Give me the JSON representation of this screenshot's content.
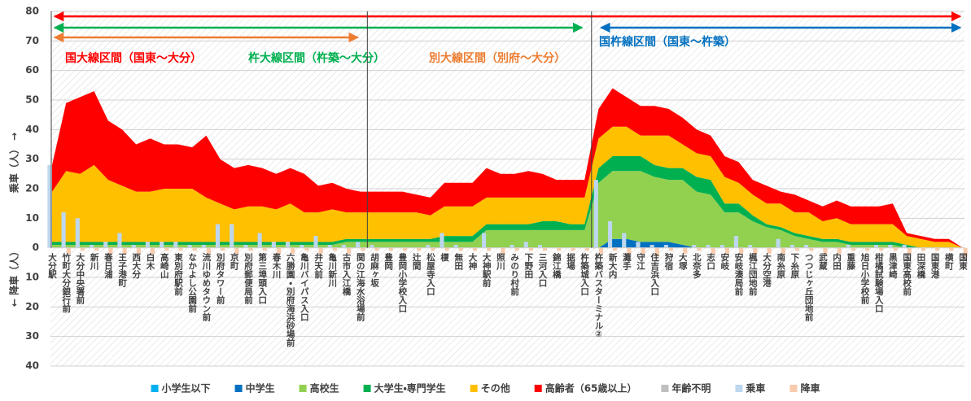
{
  "chart_data": {
    "type": "stacked_area_bar",
    "y_label_up": "乗車（人） →",
    "y_label_down": "← 降車（人）",
    "categories": [
      "大分駅",
      "竹町大分銀行前",
      "大分中央署前",
      "新川",
      "春日浦",
      "王子港町",
      "西大分",
      "白木",
      "高崎山",
      "東別府駅前",
      "なかよし公園前",
      "流川ゆめタウン前",
      "別府タワー前",
      "京町",
      "別府郵便局前",
      "第三埠頭入口",
      "春木川",
      "六勝園・別府海浜砂場前",
      "亀川バイパス入口",
      "弁天前",
      "亀川新川",
      "古市入江橋",
      "関の江海水浴場前",
      "胡麻ヶ坂",
      "豊岡",
      "豊岡小学校入口",
      "辻間",
      "松屋寺入口",
      "榎",
      "無田",
      "大神",
      "大神駅前",
      "照川",
      "みのり村前",
      "下野田",
      "三河入口",
      "錦江橋",
      "据場",
      "杵築城入口",
      "杵築バスターミナル②",
      "新大内",
      "灘手",
      "守江",
      "住吉浜入口",
      "狩宿",
      "大塚",
      "北奈多",
      "志口",
      "安岐",
      "安岐湊局前",
      "楓江団地前",
      "大分空港",
      "南糸原",
      "下糸原",
      "つつじヶ丘団地前",
      "武蔵",
      "内田",
      "重藤",
      "旭日小学校前",
      "柑橘試験場入口",
      "黒津崎",
      "国東高校前",
      "田深橋",
      "国東港",
      "横町",
      "国東"
    ],
    "series": [
      {
        "name": "小学生以下",
        "color": "#00b0f0",
        "values": [
          0,
          0,
          0,
          0,
          0,
          0,
          0,
          0,
          0,
          0,
          0,
          0,
          0,
          0,
          0,
          0,
          0,
          0,
          0,
          0,
          0,
          0,
          0,
          0,
          0,
          0,
          0,
          0,
          0,
          0,
          0,
          0,
          0,
          0,
          0,
          0,
          0,
          0,
          0,
          0,
          0,
          0,
          0,
          0,
          0,
          0,
          0,
          0,
          0,
          0,
          0,
          0,
          0,
          0,
          0,
          0,
          0,
          0,
          0,
          0,
          0,
          0,
          0,
          0,
          0,
          0
        ]
      },
      {
        "name": "中学生",
        "color": "#0070c0",
        "values": [
          0,
          0,
          0,
          0,
          0,
          0,
          0,
          0,
          0,
          0,
          0,
          0,
          0,
          0,
          0,
          0,
          0,
          0,
          0,
          0,
          0,
          0,
          0,
          0,
          0,
          0,
          0,
          0,
          0,
          0,
          0,
          0,
          0,
          0,
          0,
          0,
          0,
          0,
          0,
          0,
          3,
          3,
          2,
          2,
          2,
          1,
          0,
          0,
          0,
          0,
          0,
          0,
          0,
          0,
          0,
          0,
          0,
          0,
          0,
          0,
          0,
          0,
          0,
          0,
          0,
          0
        ]
      },
      {
        "name": "高校生",
        "color": "#92d050",
        "values": [
          1,
          1,
          1,
          1,
          1,
          1,
          1,
          1,
          1,
          1,
          1,
          1,
          1,
          1,
          1,
          1,
          1,
          1,
          1,
          1,
          1,
          2,
          2,
          2,
          2,
          2,
          2,
          2,
          2,
          2,
          2,
          6,
          6,
          6,
          6,
          6,
          6,
          6,
          6,
          22,
          23,
          23,
          24,
          22,
          21,
          22,
          19,
          18,
          12,
          12,
          9,
          7,
          6,
          4,
          3,
          2,
          2,
          1,
          1,
          1,
          1,
          0,
          0,
          0,
          0,
          0
        ]
      },
      {
        "name": "大学生・専門学生",
        "color": "#00b050",
        "values": [
          1,
          1,
          1,
          1,
          1,
          1,
          1,
          1,
          1,
          1,
          1,
          1,
          1,
          1,
          1,
          1,
          1,
          1,
          1,
          1,
          1,
          1,
          1,
          1,
          1,
          1,
          1,
          1,
          2,
          2,
          2,
          2,
          2,
          2,
          2,
          3,
          3,
          2,
          2,
          5,
          5,
          5,
          5,
          4,
          4,
          4,
          5,
          5,
          3,
          3,
          2,
          1,
          1,
          1,
          1,
          1,
          1,
          1,
          1,
          1,
          1,
          1,
          0,
          0,
          0,
          0
        ]
      },
      {
        "name": "その他",
        "color": "#ffc000",
        "values": [
          17,
          24,
          23,
          26,
          21,
          19,
          17,
          17,
          18,
          18,
          18,
          15,
          13,
          11,
          12,
          12,
          11,
          13,
          10,
          10,
          11,
          9,
          9,
          9,
          9,
          9,
          9,
          8,
          10,
          10,
          10,
          9,
          9,
          9,
          9,
          8,
          8,
          9,
          9,
          10,
          10,
          10,
          7,
          10,
          11,
          8,
          8,
          8,
          9,
          7,
          7,
          7,
          8,
          7,
          8,
          6,
          7,
          6,
          6,
          6,
          6,
          3,
          3,
          2,
          2,
          0
        ]
      },
      {
        "name": "高齢者（65歳以上）",
        "color": "#ff0000",
        "values": [
          9,
          23,
          26,
          25,
          20,
          19,
          16,
          18,
          15,
          15,
          14,
          21,
          15,
          14,
          14,
          13,
          12,
          12,
          13,
          9,
          9,
          8,
          7,
          7,
          7,
          7,
          6,
          6,
          8,
          8,
          8,
          10,
          8,
          8,
          9,
          8,
          6,
          6,
          6,
          10,
          13,
          10,
          10,
          10,
          9,
          9,
          8,
          7,
          7,
          7,
          5,
          6,
          4,
          6,
          4,
          5,
          6,
          6,
          6,
          6,
          7,
          1,
          1,
          1,
          1,
          0
        ]
      },
      {
        "name": "年齢不明",
        "color": "#bfbfbf",
        "values": [
          0,
          0,
          0,
          0,
          0,
          0,
          0,
          0,
          0,
          0,
          0,
          0,
          0,
          0,
          0,
          0,
          0,
          0,
          0,
          0,
          0,
          0,
          0,
          0,
          0,
          0,
          0,
          0,
          0,
          0,
          0,
          0,
          0,
          0,
          0,
          0,
          0,
          0,
          0,
          0,
          0,
          0,
          0,
          0,
          0,
          0,
          0,
          0,
          0,
          0,
          0,
          0,
          0,
          0,
          0,
          0,
          0,
          0,
          0,
          0,
          0,
          0,
          0,
          0,
          0,
          0
        ]
      }
    ],
    "bars": [
      {
        "name": "乗車",
        "color": "#bdd7ee",
        "values": [
          28,
          12,
          10,
          1,
          2,
          5,
          1,
          2,
          2,
          2,
          1,
          1,
          8,
          8,
          1,
          5,
          2,
          2,
          1,
          4,
          1,
          1,
          2,
          1,
          0,
          0,
          0,
          1,
          5,
          1,
          0,
          5,
          0,
          1,
          2,
          1,
          0,
          0,
          0,
          23,
          9,
          5,
          2,
          1,
          1,
          0,
          1,
          1,
          1,
          4,
          1,
          0,
          3,
          1,
          1,
          0,
          0,
          1,
          0,
          1,
          1,
          1,
          0,
          0,
          0,
          0
        ]
      },
      {
        "name": "降車",
        "color": "#f8cbad",
        "values": [
          0,
          -2,
          -1,
          -1,
          -2,
          -2,
          -2,
          -2,
          -1,
          -1,
          -1,
          -2,
          -1,
          -2,
          -1,
          -1,
          -2,
          -2,
          -1,
          -2,
          -1,
          -2,
          -1,
          -1,
          -1,
          -1,
          -1,
          -1,
          -1,
          -1,
          -1,
          -1,
          -2,
          -1,
          -1,
          -1,
          -1,
          -1,
          -1,
          -2,
          -1,
          -2,
          -2,
          -3,
          -1,
          -2,
          -1,
          -2,
          -2,
          -2,
          -2,
          -2,
          -2,
          -1,
          -1,
          -2,
          -2,
          -1,
          -1,
          -1,
          -1,
          -2,
          -1,
          -1,
          -1,
          -3
        ]
      }
    ],
    "annotations": [
      {
        "text": "国大線区間（国東～大分）",
        "color": "#ff0000",
        "start": "大分駅",
        "end": "国東"
      },
      {
        "text": "杵大線区間（杵築～大分）",
        "color": "#00b050",
        "start": "大分駅",
        "end": "杵築城入口"
      },
      {
        "text": "別大線区間（別府～大分）",
        "color": "#ed7d31",
        "start": "大分駅",
        "end": "関の江海水浴場前"
      },
      {
        "text": "国杵線区間（国東～杵築）",
        "color": "#0070c0",
        "start": "杵築バスターミナル②",
        "end": "国東"
      }
    ],
    "ylim": [
      -40,
      80
    ],
    "yticks": [
      {
        "value": -40,
        "label": "40"
      },
      {
        "value": -30,
        "label": "30"
      },
      {
        "value": -20,
        "label": "20"
      },
      {
        "value": -10,
        "label": "10"
      },
      0,
      10,
      20,
      30,
      40,
      50,
      60,
      70,
      80
    ],
    "grid": true
  }
}
